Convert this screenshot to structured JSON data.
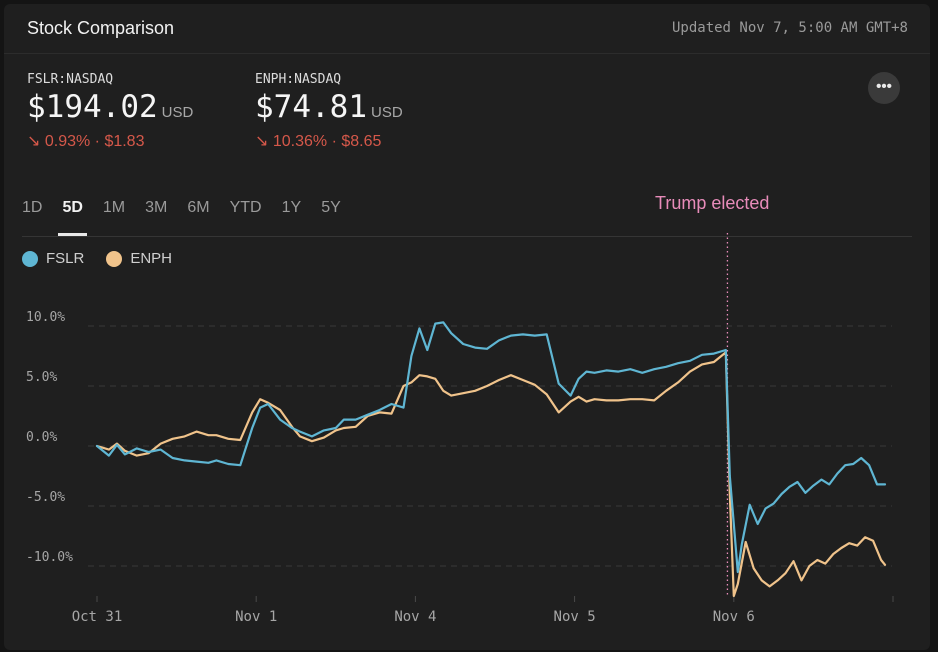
{
  "header": {
    "title": "Stock Comparison",
    "updated": "Updated Nov 7, 5:00 AM GMT+8"
  },
  "quotes": [
    {
      "symbol": "FSLR:NASDAQ",
      "price": "$194.02",
      "currency": "USD",
      "change": "↘ 0.93% · $1.83"
    },
    {
      "symbol": "ENPH:NASDAQ",
      "price": "$74.81",
      "currency": "USD",
      "change": "↘ 10.36% · $8.65"
    }
  ],
  "more_label": "•••",
  "ranges": [
    "1D",
    "5D",
    "1M",
    "3M",
    "6M",
    "YTD",
    "1Y",
    "5Y"
  ],
  "active_range": "5D",
  "colors": {
    "fslr": "#5fb6d3",
    "enph": "#f0c38b",
    "annotation": "#e88cba",
    "negative": "#d5584a"
  },
  "chart_data": {
    "type": "line",
    "title": "Stock Comparison",
    "ylim": [
      -13,
      12
    ],
    "yticks": [
      10,
      5,
      0,
      -5,
      -10
    ],
    "ytick_labels": [
      "10.0%",
      "5.0%",
      "0.0%",
      "-5.0%",
      "-10.0%"
    ],
    "xlim": [
      0,
      100
    ],
    "xticks": [
      0,
      20,
      40,
      60,
      80
    ],
    "xtick_labels": [
      "Oct 31",
      "Nov 1",
      "Nov 4",
      "Nov 5",
      "Nov 6"
    ],
    "annotation": {
      "label": "Trump elected",
      "x": 79.2
    },
    "series": [
      {
        "name": "FSLR",
        "x": [
          0,
          1.5,
          2.5,
          3.5,
          5,
          6.5,
          8,
          9.5,
          11,
          12.5,
          14,
          15,
          16.5,
          18,
          19.5,
          20.5,
          21.5,
          23,
          24.5,
          25.5,
          27,
          28.5,
          30,
          31,
          32.5,
          34,
          35.5,
          37,
          38.5,
          39.5,
          40.5,
          41.5,
          42.5,
          43.5,
          44.5,
          46,
          47.5,
          49,
          50.5,
          52,
          53.5,
          55,
          56.5,
          58,
          59.5,
          60.5,
          61.5,
          62.5,
          64,
          65.5,
          67,
          68.5,
          70,
          71.5,
          73,
          74.5,
          76,
          77.5,
          79,
          79.5,
          80.5,
          81,
          82,
          83,
          84,
          85,
          86,
          87,
          88,
          89,
          90,
          91,
          92,
          93,
          94,
          95,
          96,
          97,
          98,
          99
        ],
        "values": [
          0,
          -0.8,
          0.1,
          -0.7,
          -0.2,
          -0.5,
          -0.3,
          -1,
          -1.2,
          -1.3,
          -1.4,
          -1.2,
          -1.5,
          -1.6,
          1.5,
          3.2,
          3.5,
          2.2,
          1.5,
          1.2,
          0.8,
          1.3,
          1.5,
          2.2,
          2.2,
          2.6,
          3,
          3.5,
          3.2,
          7.5,
          9.8,
          8,
          10.2,
          10.3,
          9.4,
          8.5,
          8.2,
          8.1,
          8.8,
          9.2,
          9.3,
          9.2,
          9.3,
          5.2,
          4.2,
          5.6,
          6.2,
          6.1,
          6.3,
          6.2,
          6.4,
          6.1,
          6.4,
          6.6,
          6.9,
          7.1,
          7.6,
          7.7,
          8,
          -2.5,
          -10.5,
          -8.2,
          -4.9,
          -6.5,
          -5.2,
          -4.8,
          -4,
          -3.4,
          -3,
          -3.9,
          -3.3,
          -2.8,
          -3.2,
          -2.3,
          -1.6,
          -1.5,
          -1,
          -1.6,
          -3.2,
          -3.2
        ]
      },
      {
        "name": "ENPH",
        "x": [
          0,
          1.5,
          2.5,
          3.5,
          5,
          6.5,
          8,
          9.5,
          11,
          12.5,
          14,
          15,
          16.5,
          18,
          19.5,
          20.5,
          21.5,
          23,
          24.5,
          25.5,
          27,
          28.5,
          30,
          31,
          32.5,
          34,
          35.5,
          37,
          38.5,
          39.5,
          40.5,
          41.5,
          42.5,
          43.5,
          44.5,
          46,
          47.5,
          49,
          50.5,
          52,
          53.5,
          55,
          56.5,
          58,
          59.5,
          60.5,
          61.5,
          62.5,
          64,
          65.5,
          67,
          68.5,
          70,
          71.5,
          73,
          74.5,
          76,
          77.5,
          79,
          79.5,
          80,
          80.5,
          81.5,
          82.5,
          83.5,
          84.5,
          85.5,
          86.5,
          87.5,
          88.5,
          89.5,
          90.5,
          91.5,
          92.5,
          93.5,
          94.5,
          95.5,
          96.5,
          97.5,
          98.5,
          99
        ],
        "values": [
          0,
          -0.3,
          0.2,
          -0.4,
          -0.8,
          -0.6,
          0.2,
          0.6,
          0.8,
          1.2,
          0.9,
          0.9,
          0.6,
          0.5,
          2.8,
          3.9,
          3.6,
          3,
          1.6,
          0.8,
          0.4,
          0.7,
          1.3,
          1.5,
          1.6,
          2.5,
          2.8,
          2.7,
          5,
          5.3,
          5.9,
          5.8,
          5.6,
          4.6,
          4.2,
          4.4,
          4.6,
          5,
          5.5,
          5.9,
          5.5,
          5.1,
          4.3,
          2.8,
          3.7,
          4.1,
          3.7,
          3.9,
          3.8,
          3.8,
          3.9,
          3.9,
          3.8,
          4.6,
          5.3,
          6.2,
          6.8,
          7,
          7.8,
          -4,
          -12.5,
          -11.5,
          -8,
          -10.2,
          -11.2,
          -11.7,
          -11.2,
          -10.6,
          -9.6,
          -11.2,
          -10,
          -9.5,
          -9.8,
          -9,
          -8.5,
          -8.1,
          -8.3,
          -7.6,
          -7.9,
          -9.5,
          -9.9
        ]
      }
    ]
  }
}
